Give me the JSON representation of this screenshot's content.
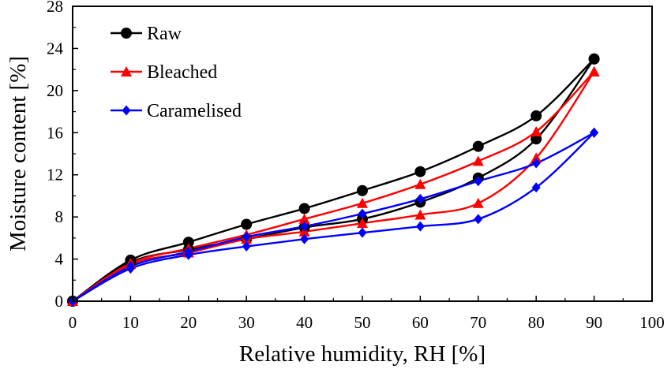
{
  "chart_data": {
    "type": "line",
    "title": "",
    "xlabel": "Relative humidity, RH [%]",
    "ylabel": "Moisture content [%]",
    "xlim": [
      0,
      100
    ],
    "ylim": [
      0,
      28
    ],
    "xticks": [
      0,
      10,
      20,
      30,
      40,
      50,
      60,
      70,
      80,
      90,
      100
    ],
    "yticks": [
      0,
      4,
      8,
      12,
      16,
      20,
      24,
      28
    ],
    "grid": false,
    "legend_position": "top-left",
    "series": [
      {
        "name": "Raw",
        "color": "#000000",
        "marker": "circle",
        "adsorption": {
          "x": [
            0,
            10,
            20,
            30,
            40,
            50,
            60,
            70,
            80,
            90
          ],
          "y": [
            0,
            3.7,
            4.9,
            5.9,
            7.0,
            7.8,
            9.4,
            11.7,
            15.4,
            23.0
          ]
        },
        "desorption": {
          "x": [
            90,
            80,
            70,
            60,
            50,
            40,
            30,
            20,
            10,
            0
          ],
          "y": [
            23.0,
            17.6,
            14.7,
            12.3,
            10.5,
            8.8,
            7.3,
            5.6,
            3.9,
            0
          ]
        }
      },
      {
        "name": "Bleached",
        "color": "#ff0000",
        "marker": "triangle",
        "adsorption": {
          "x": [
            0,
            10,
            20,
            30,
            40,
            50,
            60,
            70,
            80,
            90
          ],
          "y": [
            0,
            3.5,
            4.6,
            5.9,
            6.6,
            7.4,
            8.2,
            9.3,
            13.6,
            21.8
          ]
        },
        "desorption": {
          "x": [
            90,
            80,
            70,
            60,
            50,
            40,
            30,
            20,
            10,
            0
          ],
          "y": [
            21.8,
            16.1,
            13.3,
            11.1,
            9.3,
            7.8,
            6.3,
            5.0,
            3.6,
            0
          ]
        }
      },
      {
        "name": "Caramelised",
        "color": "#0000ff",
        "marker": "diamond",
        "adsorption": {
          "x": [
            0,
            10,
            20,
            30,
            40,
            50,
            60,
            70,
            80,
            90
          ],
          "y": [
            0,
            3.1,
            4.4,
            5.2,
            5.9,
            6.5,
            7.1,
            7.8,
            10.8,
            16.0
          ]
        },
        "desorption": {
          "x": [
            90,
            80,
            70,
            60,
            50,
            40,
            30,
            20,
            10,
            0
          ],
          "y": [
            16.0,
            13.1,
            11.4,
            9.7,
            8.3,
            7.1,
            6.1,
            4.7,
            3.3,
            0
          ]
        }
      }
    ]
  }
}
